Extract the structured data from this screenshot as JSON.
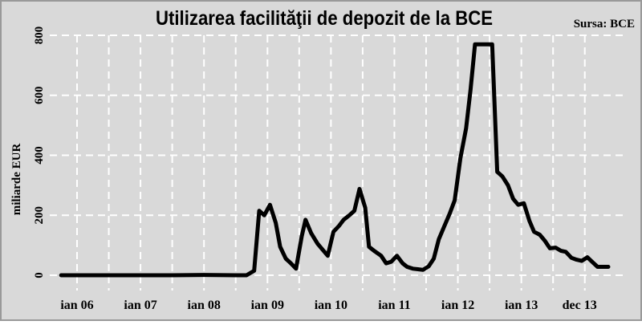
{
  "chart_data": {
    "type": "line",
    "title": "Utilizarea facilităţii de depozit de la BCE",
    "source": "Sursa: BCE",
    "ylabel": "miliarde EUR",
    "xlabel": "",
    "ylim": [
      0,
      800
    ],
    "yticks": [
      0,
      200,
      400,
      600,
      800
    ],
    "grid": true,
    "grid_style": "dashed",
    "legend": "none",
    "colors": {
      "background": "#d9d9d9",
      "border": "#999999",
      "grid": "#ffffff",
      "line": "#000000",
      "text": "#000000"
    },
    "xtick_labels": [
      {
        "label": "ian 06",
        "t": 2006.0
      },
      {
        "label": "ian 07",
        "t": 2007.0
      },
      {
        "label": "ian 08",
        "t": 2008.0
      },
      {
        "label": "ian 09",
        "t": 2009.0
      },
      {
        "label": "ian 10",
        "t": 2010.0
      },
      {
        "label": "ian 11",
        "t": 2011.0
      },
      {
        "label": "ian 12",
        "t": 2012.0
      },
      {
        "label": "ian 13",
        "t": 2013.0
      },
      {
        "label": "dec 13",
        "t": 2013.917
      }
    ],
    "xlim": [
      2005.7,
      2014.2
    ],
    "series": [
      {
        "name": "",
        "points": [
          [
            2005.75,
            0
          ],
          [
            2006.0,
            0
          ],
          [
            2006.5,
            0
          ],
          [
            2007.0,
            0
          ],
          [
            2007.5,
            0
          ],
          [
            2008.0,
            1
          ],
          [
            2008.5,
            0
          ],
          [
            2008.67,
            0
          ],
          [
            2008.79,
            15
          ],
          [
            2008.87,
            215
          ],
          [
            2008.95,
            200
          ],
          [
            2009.04,
            235
          ],
          [
            2009.13,
            175
          ],
          [
            2009.2,
            95
          ],
          [
            2009.29,
            55
          ],
          [
            2009.37,
            40
          ],
          [
            2009.45,
            22
          ],
          [
            2009.54,
            130
          ],
          [
            2009.6,
            185
          ],
          [
            2009.69,
            140
          ],
          [
            2009.79,
            105
          ],
          [
            2009.87,
            85
          ],
          [
            2009.95,
            65
          ],
          [
            2010.04,
            145
          ],
          [
            2010.13,
            165
          ],
          [
            2010.2,
            185
          ],
          [
            2010.29,
            200
          ],
          [
            2010.37,
            215
          ],
          [
            2010.45,
            288
          ],
          [
            2010.54,
            225
          ],
          [
            2010.6,
            95
          ],
          [
            2010.69,
            80
          ],
          [
            2010.79,
            65
          ],
          [
            2010.87,
            40
          ],
          [
            2010.95,
            45
          ],
          [
            2011.04,
            65
          ],
          [
            2011.13,
            40
          ],
          [
            2011.2,
            28
          ],
          [
            2011.29,
            22
          ],
          [
            2011.37,
            20
          ],
          [
            2011.45,
            18
          ],
          [
            2011.54,
            30
          ],
          [
            2011.62,
            55
          ],
          [
            2011.7,
            120
          ],
          [
            2011.79,
            165
          ],
          [
            2011.87,
            205
          ],
          [
            2011.95,
            250
          ],
          [
            2012.04,
            390
          ],
          [
            2012.13,
            490
          ],
          [
            2012.2,
            620
          ],
          [
            2012.27,
            770
          ],
          [
            2012.35,
            770
          ],
          [
            2012.45,
            770
          ],
          [
            2012.54,
            770
          ],
          [
            2012.62,
            345
          ],
          [
            2012.7,
            330
          ],
          [
            2012.79,
            300
          ],
          [
            2012.87,
            255
          ],
          [
            2012.95,
            235
          ],
          [
            2013.04,
            240
          ],
          [
            2013.13,
            180
          ],
          [
            2013.2,
            145
          ],
          [
            2013.29,
            135
          ],
          [
            2013.37,
            115
          ],
          [
            2013.45,
            90
          ],
          [
            2013.54,
            92
          ],
          [
            2013.62,
            82
          ],
          [
            2013.7,
            78
          ],
          [
            2013.79,
            58
          ],
          [
            2013.87,
            52
          ],
          [
            2013.95,
            48
          ],
          [
            2014.04,
            60
          ],
          [
            2014.13,
            42
          ],
          [
            2014.2,
            28
          ],
          [
            2014.29,
            28
          ],
          [
            2014.37,
            28
          ]
        ]
      }
    ]
  }
}
